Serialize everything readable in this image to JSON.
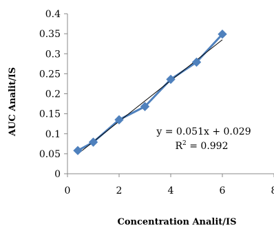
{
  "chart_data": {
    "type": "scatter",
    "xlabel": "Concentration Analit/IS",
    "ylabel": "AUC Analit/IS",
    "xlim": [
      0,
      8
    ],
    "ylim": [
      0,
      0.4
    ],
    "x_ticks": [
      "0",
      "2",
      "4",
      "6",
      "8"
    ],
    "y_ticks": [
      "0",
      "0.05",
      "0.1",
      "0.15",
      "0.2",
      "0.25",
      "0.3",
      "0.35",
      "0.4"
    ],
    "grid": false,
    "series": [
      {
        "x": [
          0.4,
          1,
          2,
          3,
          4,
          5,
          6
        ],
        "y": [
          0.058,
          0.079,
          0.135,
          0.168,
          0.236,
          0.279,
          0.349
        ],
        "marker": "diamond",
        "color": "#4f81bd"
      }
    ],
    "trendline": {
      "slope": 0.051,
      "intercept": 0.029,
      "x_range": [
        0.4,
        6
      ],
      "color": "#000000"
    },
    "annotations": {
      "equation": "y = 0.051x + 0.029",
      "r2_prefix": "R",
      "r2_sup": "2",
      "r2_suffix": " = 0.992"
    }
  }
}
